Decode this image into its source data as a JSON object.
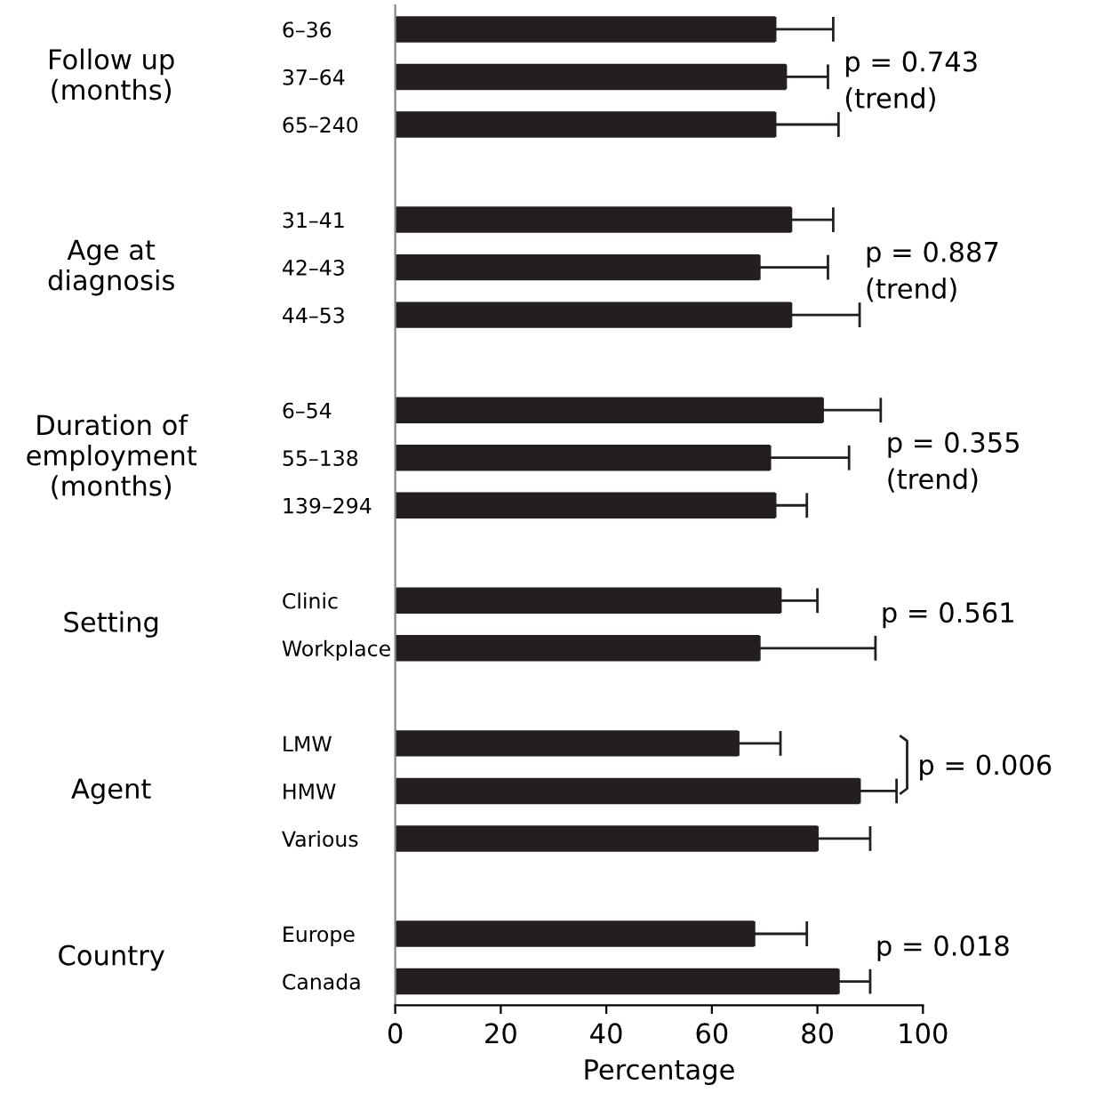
{
  "chart_data": {
    "type": "bar",
    "orientation": "horizontal",
    "xlabel": "Percentage",
    "categories": [
      "6–36",
      "37–64",
      "65–240",
      null,
      "31–41",
      "42–43",
      "44–53",
      null,
      "6–54",
      "55–138",
      "139–294",
      null,
      "Clinic",
      "Workplace",
      null,
      "LMW",
      "HMW",
      "Various",
      null,
      "Europe",
      "Canada"
    ],
    "values": [
      72,
      74,
      72,
      null,
      75,
      69,
      75,
      null,
      81,
      71,
      72,
      null,
      73,
      69,
      null,
      65,
      88,
      80,
      null,
      68,
      84
    ],
    "errors": [
      [
        72,
        83
      ],
      [
        74,
        82
      ],
      [
        72,
        84
      ],
      null,
      [
        75,
        83
      ],
      [
        69,
        82
      ],
      [
        75,
        88
      ],
      null,
      [
        81,
        92
      ],
      [
        71,
        86
      ],
      [
        72,
        78
      ],
      null,
      [
        73,
        80
      ],
      [
        69,
        91
      ],
      null,
      [
        65,
        73
      ],
      [
        88,
        95
      ],
      [
        80,
        90
      ],
      null,
      [
        68,
        78
      ],
      [
        84,
        90
      ]
    ],
    "color": "#231f20",
    "xlim": [
      0,
      100
    ],
    "xticks": [
      0,
      20,
      40,
      60,
      80,
      100
    ],
    "annotations": [
      "Follow up\n(months)",
      "Age at\ndiagnosis",
      "Duration of\nemployment\n(months)",
      "Setting",
      "Agent",
      "Country",
      "p = 0.743\n(trend)",
      "p = 0.887\n(trend)",
      "p = 0.355\n(trend)",
      "p = 0.561",
      "p = 0.006",
      "p = 0.018"
    ],
    "grid": false,
    "legend": false
  }
}
